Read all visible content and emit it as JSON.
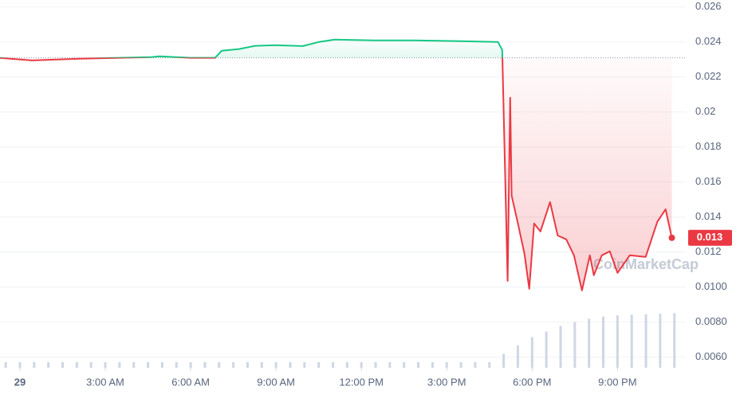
{
  "chart_data": {
    "type": "line",
    "x": [
      -0.7,
      0.42,
      2.1,
      4.62,
      4.9,
      6.0,
      6.86,
      7.09,
      7.7,
      8.26,
      8.96,
      9.94,
      10.5,
      11.06,
      12.46,
      13.87,
      15.55,
      16.8,
      16.95,
      17.14,
      17.23,
      17.28,
      17.5,
      17.73,
      17.9,
      18.07,
      18.29,
      18.63,
      18.9,
      19.2,
      19.47,
      19.75,
      20.03,
      20.17,
      20.45,
      20.73,
      21.0,
      21.43,
      21.99,
      22.4,
      22.69,
      22.91
    ],
    "values": [
      0.02309,
      0.02295,
      0.02305,
      0.02314,
      0.02318,
      0.0231,
      0.0231,
      0.0235,
      0.0236,
      0.02378,
      0.02382,
      0.02377,
      0.024,
      0.02414,
      0.02409,
      0.02409,
      0.02405,
      0.024,
      0.02355,
      0.01036,
      0.02082,
      0.01523,
      0.01364,
      0.01191,
      0.00991,
      0.01364,
      0.01318,
      0.01486,
      0.01295,
      0.01273,
      0.01182,
      0.00982,
      0.01182,
      0.01068,
      0.01182,
      0.01205,
      0.01082,
      0.01182,
      0.01173,
      0.01373,
      0.01445,
      0.01282
    ],
    "last_price_label": "0.013",
    "baseline": 0.0231,
    "up_color": "#16c784",
    "down_color": "#ea3943",
    "xlim": [
      -0.7,
      23.4
    ],
    "xticks": [
      {
        "value": 0,
        "label": "29"
      },
      {
        "value": 3,
        "label": "3:00 AM"
      },
      {
        "value": 6,
        "label": "6:00 AM"
      },
      {
        "value": 9,
        "label": "9:00 AM"
      },
      {
        "value": 12,
        "label": "12:00 PM"
      },
      {
        "value": 15,
        "label": "3:00 PM"
      },
      {
        "value": 18,
        "label": "6:00 PM"
      },
      {
        "value": 21,
        "label": "9:00 PM"
      }
    ],
    "ylim": [
      0.0054,
      0.0264
    ],
    "yticks": [
      {
        "value": 0.006,
        "label": "0.0060"
      },
      {
        "value": 0.008,
        "label": "0.0080"
      },
      {
        "value": 0.01,
        "label": "0.0100"
      },
      0.012,
      0.014,
      0.016,
      0.018,
      0.02,
      0.022,
      0.024,
      0.026
    ],
    "grid": true,
    "watermark": "CoinMarketCap",
    "volume": {
      "color": "#cfd6e4",
      "x": [
        -0.5,
        0,
        0.5,
        1,
        1.5,
        2,
        2.5,
        3,
        3.5,
        4,
        4.5,
        5,
        5.5,
        6,
        6.5,
        7,
        7.5,
        8,
        8.5,
        9,
        9.5,
        10,
        10.5,
        11,
        11.5,
        12,
        12.5,
        13,
        13.5,
        14,
        14.5,
        15,
        15.5,
        16,
        16.5,
        17,
        17.5,
        18,
        18.5,
        19,
        19.5,
        20,
        20.5,
        21,
        21.5,
        22,
        22.5,
        23
      ],
      "values": [
        10,
        10,
        10,
        10,
        10,
        10,
        10,
        10,
        10,
        10,
        10,
        10,
        10,
        10,
        10,
        10,
        10,
        10,
        10,
        10,
        10,
        10,
        10,
        10,
        10,
        10,
        10,
        10,
        10,
        10,
        10,
        10,
        10,
        10,
        10,
        25,
        40,
        55,
        65,
        75,
        82,
        88,
        92,
        94,
        95,
        96,
        97,
        98
      ],
      "ylim": [
        0,
        100
      ]
    }
  }
}
